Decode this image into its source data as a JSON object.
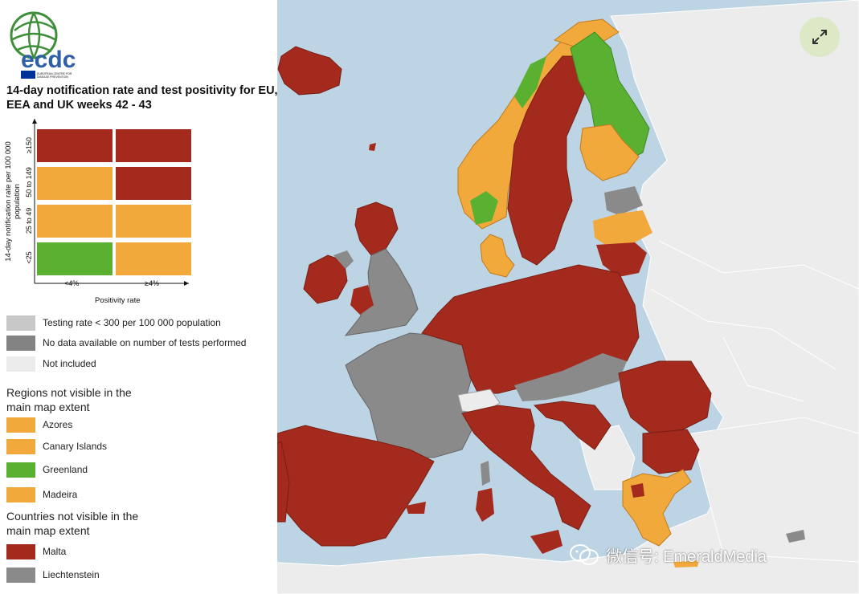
{
  "logo": {
    "text": "ecdc",
    "subtitle": "EUROPEAN CENTRE FOR DISEASE PREVENTION AND CONTROL"
  },
  "title": "14-day notification rate and test positivity for EU, EEA and UK weeks 42 - 43",
  "matrix": {
    "y_axis_label": "14-day notification rate per 100 000 population",
    "y_ticks": [
      "≥150",
      "50 to 149",
      "25 to 49",
      "<25"
    ],
    "x_ticks": [
      "<4%",
      "≥4%"
    ],
    "x_axis_label": "Positivity rate",
    "rows": [
      [
        "dark-red",
        "dark-red"
      ],
      [
        "orange",
        "dark-red"
      ],
      [
        "orange",
        "orange"
      ],
      [
        "green",
        "orange"
      ]
    ]
  },
  "colors": {
    "dark-red": "#a32a1d",
    "orange": "#f2a93b",
    "green": "#5ab031",
    "light-grey": "#c8c8c8",
    "dark-grey": "#838383",
    "not-included": "#ececec",
    "land-other": "#ececec",
    "sea": "#bcd4e3",
    "grey-fill": "#8a8a8a"
  },
  "legend_grey": [
    {
      "color": "light-grey",
      "label": "Testing rate < 300 per 100 000 population"
    },
    {
      "color": "dark-grey",
      "label": "No data available on number of tests performed"
    },
    {
      "color": "not-included",
      "label": "Not included"
    }
  ],
  "regions_heading": "Regions not visible in the main map extent",
  "regions": [
    {
      "color": "orange",
      "label": "Azores"
    },
    {
      "color": "orange",
      "label": "Canary Islands"
    },
    {
      "color": "green",
      "label": "Greenland"
    },
    {
      "color": "orange",
      "label": "Madeira"
    }
  ],
  "countries_heading": "Countries not visible in the main map extent",
  "countries": [
    {
      "color": "dark-red",
      "label": "Malta"
    },
    {
      "color": "grey-fill",
      "label": "Liechtenstein"
    }
  ],
  "map_icons": [
    "expand-icon",
    "wechat-icon"
  ],
  "watermark": "微信号: EmeraldMedia"
}
